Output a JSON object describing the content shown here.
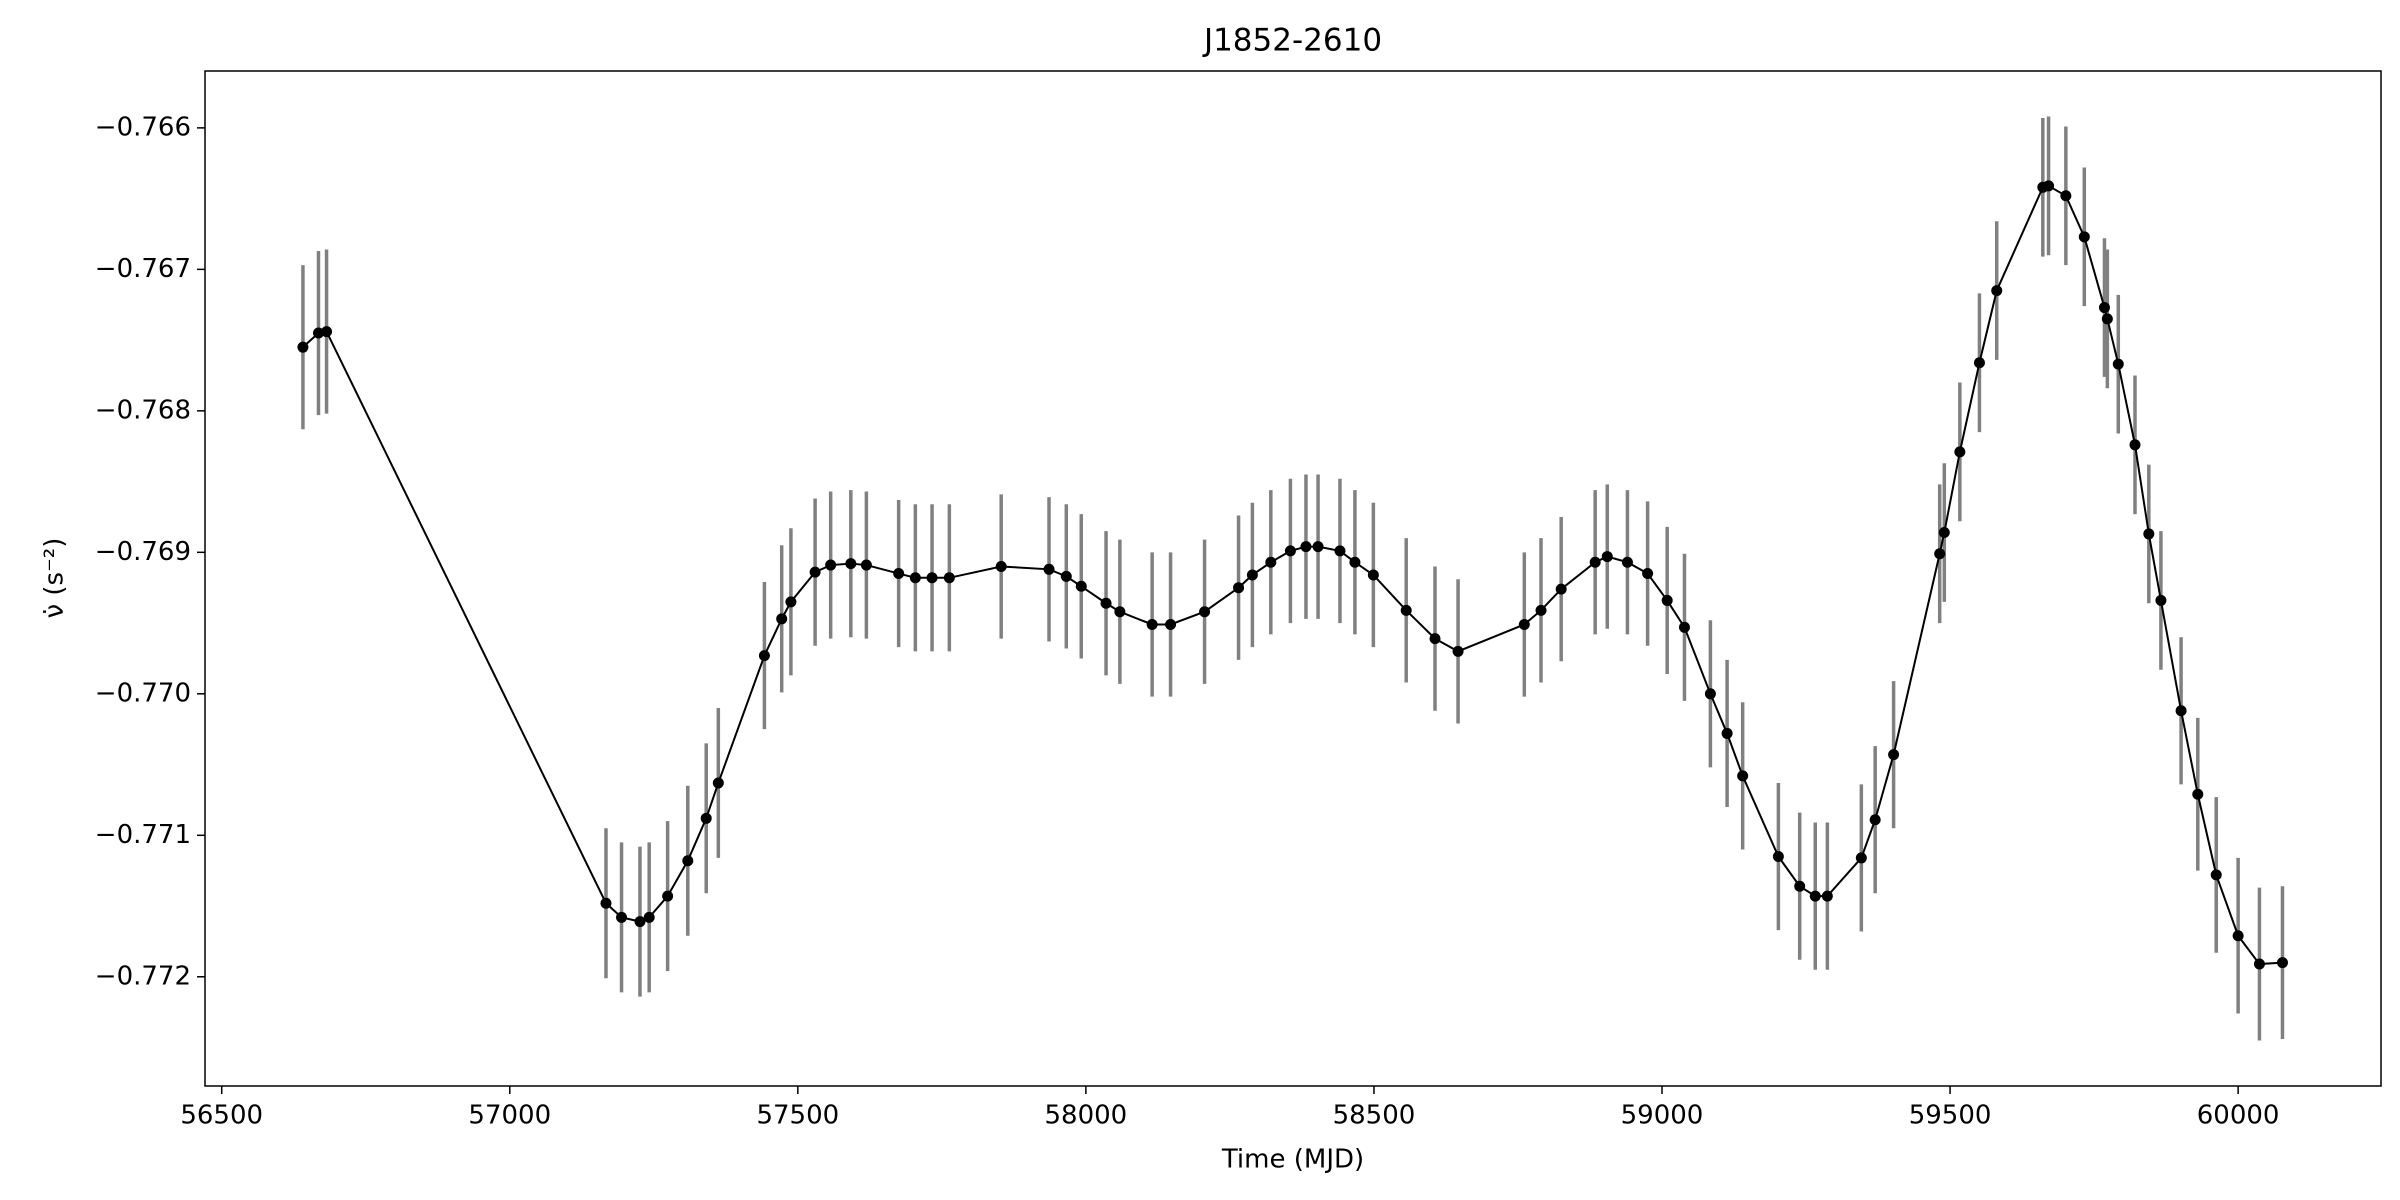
{
  "chart_data": {
    "type": "errorbar-line",
    "title": "J1852-2610",
    "xlabel": "Time (MJD)",
    "ylabel": "ν̇ (s⁻²)",
    "x": [
      56641,
      56668,
      56682,
      57167,
      57194,
      57226,
      57242,
      57274,
      57309,
      57341,
      57362,
      57442,
      57472,
      57488,
      57530,
      57557,
      57592,
      57619,
      57675,
      57704,
      57733,
      57763,
      57853,
      57936,
      57966,
      57992,
      58035,
      58059,
      58115,
      58147,
      58206,
      58265,
      58289,
      58321,
      58355,
      58382,
      58403,
      58441,
      58467,
      58499,
      58556,
      58606,
      58646,
      58761,
      58790,
      58825,
      58884,
      58905,
      58940,
      58975,
      59009,
      59039,
      59084,
      59113,
      59140,
      59202,
      59239,
      59266,
      59287,
      59346,
      59370,
      59402,
      59482,
      59490,
      59517,
      59551,
      59581,
      59661,
      59671,
      59701,
      59733,
      59768,
      59773,
      59792,
      59821,
      59845,
      59866,
      59901,
      59930,
      59962,
      60000,
      60037,
      60077
    ],
    "values": [
      -0.76755,
      -0.76745,
      -0.76744,
      -0.77148,
      -0.77158,
      -0.77161,
      -0.77158,
      -0.77143,
      -0.77118,
      -0.77088,
      -0.77063,
      -0.76973,
      -0.76947,
      -0.76935,
      -0.76914,
      -0.76909,
      -0.76908,
      -0.76909,
      -0.76915,
      -0.76918,
      -0.76918,
      -0.76918,
      -0.7691,
      -0.76912,
      -0.76917,
      -0.76924,
      -0.76936,
      -0.76942,
      -0.76951,
      -0.76951,
      -0.76942,
      -0.76925,
      -0.76916,
      -0.76907,
      -0.76899,
      -0.76896,
      -0.76896,
      -0.76899,
      -0.76907,
      -0.76916,
      -0.76941,
      -0.76961,
      -0.7697,
      -0.76951,
      -0.76941,
      -0.76926,
      -0.76907,
      -0.76903,
      -0.76907,
      -0.76915,
      -0.76934,
      -0.76953,
      -0.77,
      -0.77028,
      -0.77058,
      -0.77115,
      -0.77136,
      -0.77143,
      -0.77143,
      -0.77116,
      -0.77089,
      -0.77043,
      -0.76901,
      -0.76886,
      -0.76829,
      -0.76766,
      -0.76715,
      -0.76642,
      -0.76641,
      -0.76648,
      -0.76677,
      -0.76727,
      -0.76735,
      -0.76767,
      -0.76824,
      -0.76887,
      -0.76934,
      -0.77012,
      -0.77071,
      -0.77128,
      -0.77171,
      -0.77191,
      -0.7719
    ],
    "errors": [
      0.00058,
      0.00058,
      0.00058,
      0.00053,
      0.00053,
      0.00053,
      0.00053,
      0.00053,
      0.00053,
      0.00053,
      0.00053,
      0.00052,
      0.00052,
      0.00052,
      0.00052,
      0.00052,
      0.00052,
      0.00052,
      0.00052,
      0.00052,
      0.00052,
      0.00052,
      0.00051,
      0.00051,
      0.00051,
      0.00051,
      0.00051,
      0.00051,
      0.00051,
      0.00051,
      0.00051,
      0.00051,
      0.00051,
      0.00051,
      0.00051,
      0.00051,
      0.00051,
      0.00051,
      0.00051,
      0.00051,
      0.00051,
      0.00051,
      0.00051,
      0.00051,
      0.00051,
      0.00051,
      0.00051,
      0.00051,
      0.00051,
      0.00051,
      0.00052,
      0.00052,
      0.00052,
      0.00052,
      0.00052,
      0.00052,
      0.00052,
      0.00052,
      0.00052,
      0.00052,
      0.00052,
      0.00052,
      0.00049,
      0.00049,
      0.00049,
      0.00049,
      0.00049,
      0.00049,
      0.00049,
      0.00049,
      0.00049,
      0.00049,
      0.00049,
      0.00049,
      0.00049,
      0.00049,
      0.00049,
      0.00052,
      0.00054,
      0.00055,
      0.00055,
      0.00054,
      0.00054
    ],
    "color": "#000000",
    "error_color": "#808080",
    "xlim": [
      56471,
      60248
    ],
    "xticks": [
      56500,
      57000,
      57500,
      58000,
      58500,
      59000,
      59500,
      60000
    ],
    "ylim": [
      -0.772772,
      -0.765598
    ],
    "yticks": [
      {
        "value": -0.766,
        "label": "−0.766"
      },
      {
        "value": -0.767,
        "label": "−0.767"
      },
      {
        "value": -0.768,
        "label": "−0.768"
      },
      {
        "value": -0.769,
        "label": "−0.769"
      },
      {
        "value": -0.77,
        "label": "−0.770"
      },
      {
        "value": -0.771,
        "label": "−0.771"
      },
      {
        "value": -0.772,
        "label": "−0.772"
      }
    ],
    "grid": false
  }
}
